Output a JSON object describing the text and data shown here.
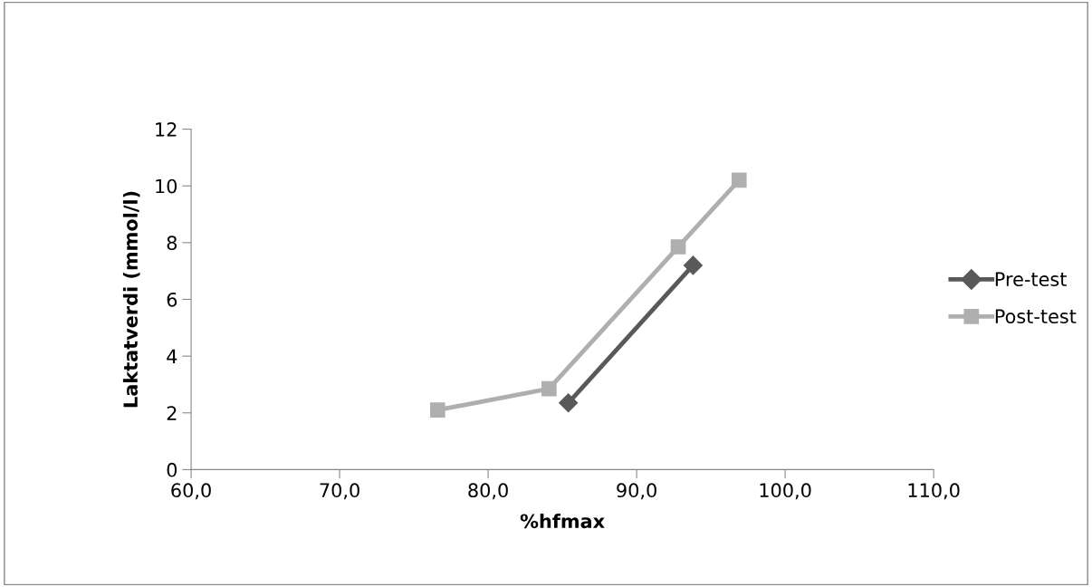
{
  "chart_data": {
    "type": "line",
    "xlabel": "%hfmax",
    "ylabel": "Laktatverdi (mmol/l)",
    "series": [
      {
        "name": "Pre-test",
        "color": "#595959",
        "marker": "diamond",
        "x": [
          85.4,
          93.8
        ],
        "values": [
          2.35,
          7.2
        ]
      },
      {
        "name": "Post-test",
        "color": "#afafaf",
        "marker": "square",
        "x": [
          76.6,
          84.1,
          92.8,
          96.9
        ],
        "values": [
          2.1,
          2.85,
          7.85,
          10.2
        ]
      }
    ],
    "xlim": [
      60,
      110
    ],
    "xticks": [
      {
        "value": 60,
        "label": "60,0"
      },
      {
        "value": 70,
        "label": "70,0"
      },
      {
        "value": 80,
        "label": "80,0"
      },
      {
        "value": 90,
        "label": "90,0"
      },
      {
        "value": 100,
        "label": "100,0"
      },
      {
        "value": 110,
        "label": "110,0"
      }
    ],
    "ylim": [
      0,
      12
    ],
    "yticks": [
      0,
      2,
      4,
      6,
      8,
      10,
      12
    ],
    "grid": false,
    "legend": "right"
  }
}
